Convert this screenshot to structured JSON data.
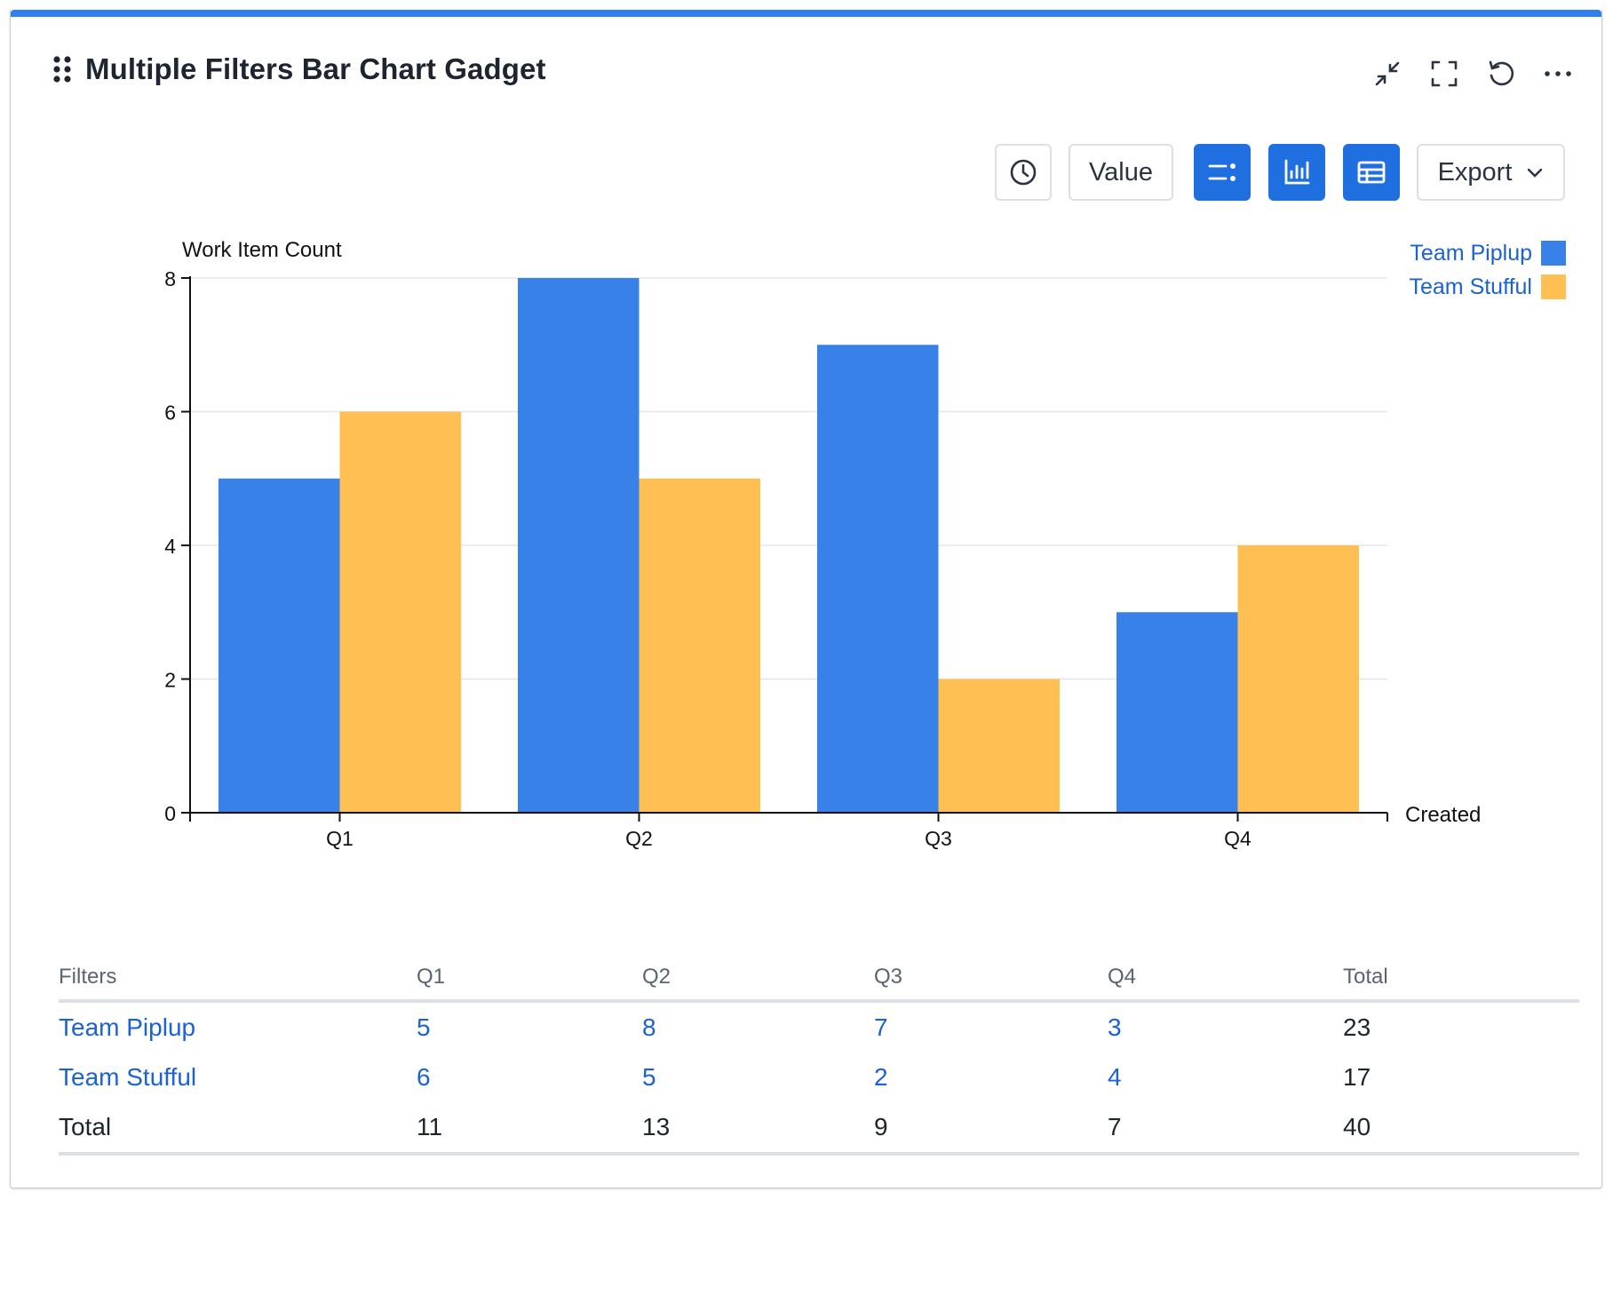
{
  "gadget": {
    "title": "Multiple Filters Bar Chart Gadget",
    "accent_color": "#2f7fef",
    "header_icons": [
      "collapse-icon",
      "fullscreen-icon",
      "refresh-icon",
      "more-icon"
    ]
  },
  "toolbar": {
    "history_icon": "clock-icon",
    "value_label": "Value",
    "legend_toggle_icon": "legend-toggle-icon",
    "chart_view_icon": "bar-chart-icon",
    "table_view_icon": "table-icon",
    "export_label": "Export",
    "active_color": "#1f6fe1"
  },
  "chart_data": {
    "type": "bar",
    "categories": [
      "Q1",
      "Q2",
      "Q3",
      "Q4"
    ],
    "series": [
      {
        "name": "Team Piplup",
        "values": [
          5,
          8,
          7,
          3
        ],
        "color": "#3781e8"
      },
      {
        "name": "Team Stufful",
        "values": [
          6,
          5,
          2,
          4
        ],
        "color": "#ffbf52"
      }
    ],
    "ylabel": "Work Item Count",
    "xlabel": "Created",
    "ylim": [
      0,
      8
    ],
    "yticks": [
      0,
      2,
      4,
      6,
      8
    ],
    "grid": true,
    "legend_position": "top-right"
  },
  "table": {
    "headers": [
      "Filters",
      "Q1",
      "Q2",
      "Q3",
      "Q4",
      "Total"
    ],
    "rows": [
      {
        "label": "Team Piplup",
        "cells": [
          "5",
          "8",
          "7",
          "3"
        ],
        "total": "23"
      },
      {
        "label": "Team Stufful",
        "cells": [
          "6",
          "5",
          "2",
          "4"
        ],
        "total": "17"
      }
    ],
    "total_row": {
      "label": "Total",
      "cells": [
        "11",
        "13",
        "9",
        "7"
      ],
      "total": "40"
    }
  }
}
